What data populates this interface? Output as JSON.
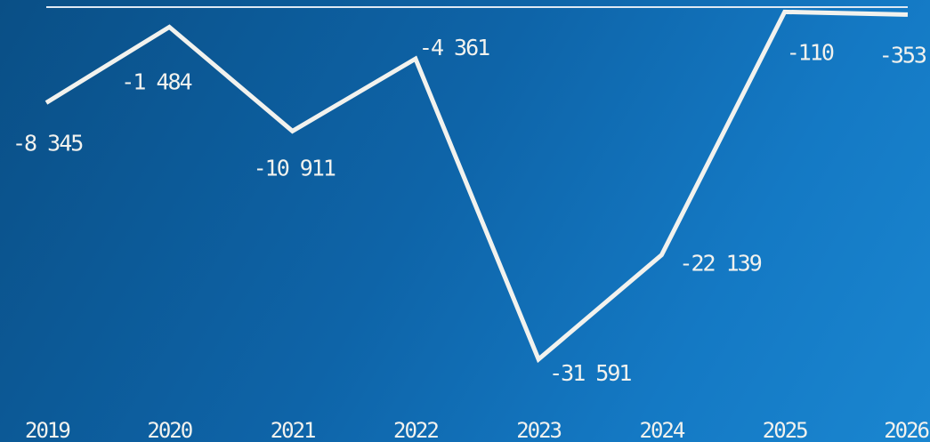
{
  "chart_data": {
    "type": "line",
    "x": [
      "2019",
      "2020",
      "2021",
      "2022",
      "2023",
      "2024",
      "2025",
      "2026"
    ],
    "series": [
      {
        "values": [
          -8345,
          -1484,
          -10911,
          -4361,
          -31591,
          -22139,
          -110,
          -353
        ],
        "labels": [
          "-8 345",
          "-1 484",
          "-10 911",
          "-4 361",
          "-31 591",
          "-22 139",
          "-110",
          "-353"
        ]
      }
    ],
    "title": "",
    "xlabel": "",
    "ylabel": "",
    "ylim": [
      -31591,
      0
    ],
    "grid": false,
    "legend": "none",
    "line_color": "#f2f2ee",
    "baseline_color": "#dfe9f3"
  }
}
